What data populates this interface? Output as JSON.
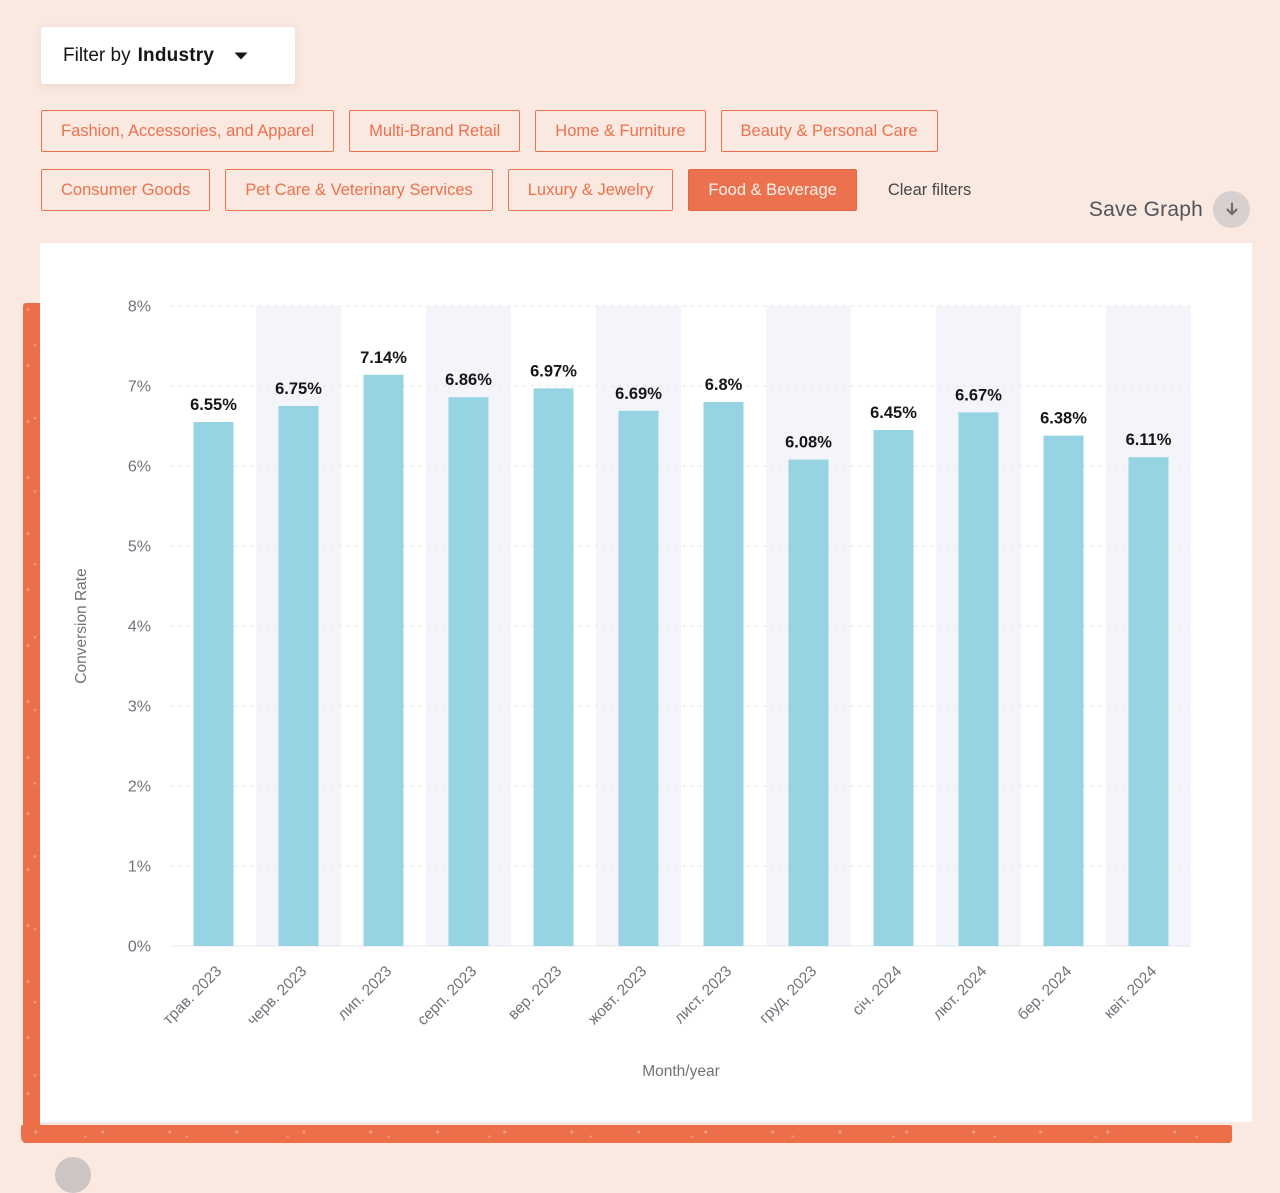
{
  "filter_bar": {
    "dropdown": {
      "prefix": "Filter by",
      "selected": "Industry"
    },
    "chips": [
      {
        "label": "Fashion, Accessories, and Apparel",
        "selected": false
      },
      {
        "label": "Multi-Brand Retail",
        "selected": false
      },
      {
        "label": "Home & Furniture",
        "selected": false
      },
      {
        "label": "Beauty & Personal Care",
        "selected": false
      },
      {
        "label": "Consumer Goods",
        "selected": false
      },
      {
        "label": "Pet Care & Veterinary Services",
        "selected": false
      },
      {
        "label": "Luxury & Jewelry",
        "selected": false
      },
      {
        "label": "Food & Beverage",
        "selected": true
      }
    ],
    "clear_label": "Clear filters"
  },
  "toolbar": {
    "save_graph_label": "Save Graph",
    "save_icon": "download-arrow-icon"
  },
  "colors": {
    "page_bg": "#F9E9E1",
    "accent_orange": "#EC714E",
    "brush_orange": "#EC6F49",
    "bar_fill": "#96D3E3",
    "column_stripe": "#F3F5FA",
    "grid_dashed": "#E8E2DF",
    "axis_line": "#E4E7EC",
    "axis_text": "#6F7379",
    "value_label_text": "#17171A",
    "selected_chip_text": "#FBF2EA"
  },
  "chart_data": {
    "type": "bar",
    "title": "",
    "categories": [
      "трав. 2023",
      "черв. 2023",
      "лип. 2023",
      "серп. 2023",
      "вер. 2023",
      "жовт. 2023",
      "лист. 2023",
      "груд. 2023",
      "січ. 2024",
      "лют. 2024",
      "бер. 2024",
      "квіт. 2024"
    ],
    "values": [
      6.55,
      6.75,
      7.14,
      6.86,
      6.97,
      6.69,
      6.8,
      6.08,
      6.45,
      6.67,
      6.38,
      6.11
    ],
    "value_labels": [
      "6.55%",
      "6.75%",
      "7.14%",
      "6.86%",
      "6.97%",
      "6.69%",
      "6.8%",
      "6.08%",
      "6.45%",
      "6.67%",
      "6.38%",
      "6.11%"
    ],
    "xlabel": "Month/year",
    "ylabel": "Conversion Rate",
    "ylim": [
      0,
      8
    ],
    "ytick_labels": [
      "0%",
      "1%",
      "2%",
      "3%",
      "4%",
      "5%",
      "6%",
      "7%",
      "8%"
    ],
    "grid": "horizontal-dashed",
    "legend": "none",
    "column_stripes": "alternate-even-columns"
  }
}
